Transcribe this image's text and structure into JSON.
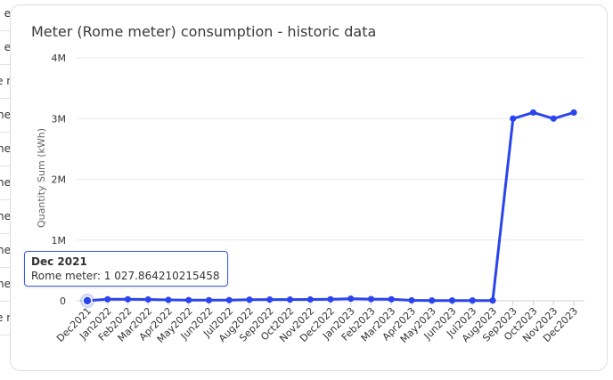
{
  "background_rows": [
    "e",
    "e",
    "e n",
    "ne",
    "ne",
    "ne",
    "ne",
    "ne",
    "ne",
    "e n"
  ],
  "colors": {
    "line": "#2b45ee",
    "grid": "#e9e9e9",
    "axis": "#d0d0d0",
    "tooltip_border": "#3a5bf2"
  },
  "tooltip": {
    "title": "Dec 2021",
    "label": "Rome meter: 1 027.864210215458"
  },
  "chart_data": {
    "type": "line",
    "title": "Meter (Rome meter) consumption - historic data",
    "xlabel": "",
    "ylabel": "Quantity Sum (kWh)",
    "ylim": [
      0,
      4000000
    ],
    "yticks": [
      0,
      1000000,
      2000000,
      3000000,
      4000000
    ],
    "ytick_labels": [
      "0",
      "1M",
      "2M",
      "3M",
      "4M"
    ],
    "grid": true,
    "legend": "none",
    "categories": [
      "Dec 2021",
      "Jan 2022",
      "Feb 2022",
      "Mar 2022",
      "Apr 2022",
      "May 2022",
      "Jun 2022",
      "Jul 2022",
      "Aug 2022",
      "Sep 2022",
      "Oct 2022",
      "Nov 2022",
      "Dec 2022",
      "Jan 2023",
      "Feb 2023",
      "Mar 2023",
      "Apr 2023",
      "May 2023",
      "Jun 2023",
      "Jul 2023",
      "Aug 2023",
      "Sep 2023",
      "Oct 2023",
      "Nov 2023",
      "Dec 2023"
    ],
    "series": [
      {
        "values": [
          1027.864210215458,
          25000,
          25000,
          22000,
          15000,
          12000,
          10000,
          12000,
          18000,
          20000,
          20000,
          22000,
          25000,
          35000,
          28000,
          25000,
          8000,
          5000,
          5000,
          5000,
          5000,
          3000000,
          3100000,
          3000000,
          3100000
        ],
        "highlight_index": 0
      }
    ]
  }
}
